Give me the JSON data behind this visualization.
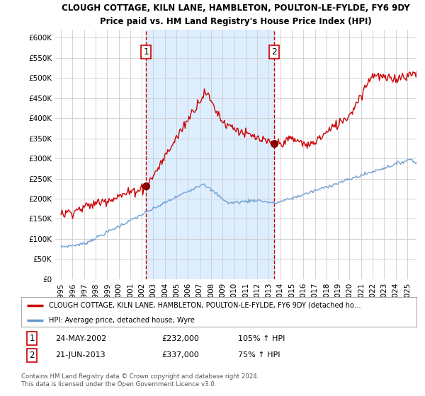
{
  "title": "CLOUGH COTTAGE, KILN LANE, HAMBLETON, POULTON-LE-FYLDE, FY6 9DY",
  "subtitle": "Price paid vs. HM Land Registry's House Price Index (HPI)",
  "ylim": [
    0,
    620000
  ],
  "yticks": [
    0,
    50000,
    100000,
    150000,
    200000,
    250000,
    300000,
    350000,
    400000,
    450000,
    500000,
    550000,
    600000
  ],
  "sale1_year": 2002.38,
  "sale1_price": 232000,
  "sale2_year": 2013.47,
  "sale2_price": 337000,
  "sale1_date": "24-MAY-2002",
  "sale1_pct": "105% ↑ HPI",
  "sale2_date": "21-JUN-2013",
  "sale2_pct": "75% ↑ HPI",
  "line_color_property": "#cc0000",
  "line_color_hpi": "#6699cc",
  "shade_color": "#ddeeff",
  "legend_property": "CLOUGH COTTAGE, KILN LANE, HAMBLETON, POULTON-LE-FYLDE, FY6 9DY (detached ho…",
  "legend_hpi": "HPI: Average price, detached house, Wyre",
  "footer1": "Contains HM Land Registry data © Crown copyright and database right 2024.",
  "footer2": "This data is licensed under the Open Government Licence v3.0.",
  "background_color": "#ffffff",
  "grid_color": "#cccccc"
}
